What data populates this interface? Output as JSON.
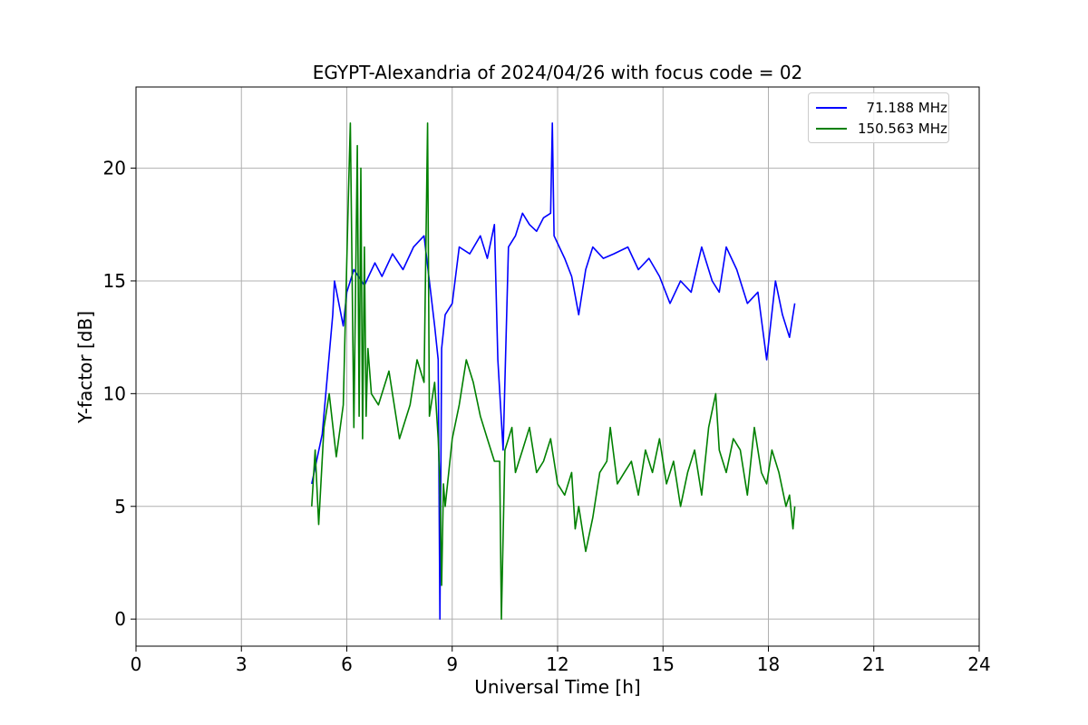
{
  "chart_data": {
    "type": "line",
    "title": "EGYPT-Alexandria of 2024/04/26 with focus code = 02",
    "xlabel": "Universal Time [h]",
    "ylabel": "Y-factor [dB]",
    "xlim": [
      0,
      24
    ],
    "ylim": [
      -1.2,
      23.6
    ],
    "xticks": [
      0,
      3,
      6,
      9,
      12,
      15,
      18,
      21,
      24
    ],
    "yticks": [
      0,
      5,
      10,
      15,
      20
    ],
    "grid": true,
    "legend": "top-right",
    "series": [
      {
        "name": "  71.188 MHz",
        "color": "#0000ff",
        "x": [
          5.0,
          5.3,
          5.6,
          5.65,
          5.9,
          6.0,
          6.2,
          6.5,
          6.8,
          7.0,
          7.3,
          7.6,
          7.9,
          8.2,
          8.5,
          8.6,
          8.65,
          8.7,
          8.8,
          9.0,
          9.2,
          9.5,
          9.8,
          10.0,
          10.2,
          10.3,
          10.45,
          10.6,
          10.8,
          11.0,
          11.2,
          11.4,
          11.6,
          11.8,
          11.85,
          11.9,
          12.2,
          12.4,
          12.6,
          12.8,
          13.0,
          13.3,
          13.6,
          14.0,
          14.3,
          14.6,
          14.9,
          15.2,
          15.5,
          15.8,
          16.1,
          16.4,
          16.6,
          16.8,
          17.1,
          17.4,
          17.7,
          17.95,
          18.2,
          18.4,
          18.6,
          18.7,
          18.75
        ],
        "y": [
          6.0,
          8.2,
          13.5,
          15.0,
          13.0,
          14.5,
          15.5,
          14.8,
          15.8,
          15.2,
          16.2,
          15.5,
          16.5,
          17.0,
          13.0,
          11.5,
          0.0,
          12.0,
          13.5,
          14.0,
          16.5,
          16.2,
          17.0,
          16.0,
          17.5,
          11.5,
          7.5,
          16.5,
          17.0,
          18.0,
          17.5,
          17.2,
          17.8,
          18.0,
          22.0,
          17.0,
          16.0,
          15.2,
          13.5,
          15.5,
          16.5,
          16.0,
          16.2,
          16.5,
          15.5,
          16.0,
          15.2,
          14.0,
          15.0,
          14.5,
          16.5,
          15.0,
          14.5,
          16.5,
          15.5,
          14.0,
          14.5,
          11.5,
          15.0,
          13.5,
          12.5,
          13.5,
          14.0
        ]
      },
      {
        "name": "150.563 MHz",
        "color": "#008000",
        "x": [
          5.0,
          5.1,
          5.2,
          5.35,
          5.5,
          5.7,
          5.9,
          6.05,
          6.1,
          6.2,
          6.3,
          6.35,
          6.4,
          6.45,
          6.5,
          6.55,
          6.6,
          6.7,
          6.9,
          7.2,
          7.5,
          7.8,
          8.0,
          8.2,
          8.3,
          8.35,
          8.5,
          8.6,
          8.65,
          8.7,
          8.75,
          8.8,
          9.0,
          9.2,
          9.4,
          9.6,
          9.8,
          10.0,
          10.2,
          10.35,
          10.4,
          10.5,
          10.7,
          10.8,
          11.0,
          11.2,
          11.4,
          11.6,
          11.8,
          12.0,
          12.2,
          12.4,
          12.5,
          12.6,
          12.8,
          13.0,
          13.2,
          13.4,
          13.5,
          13.7,
          13.9,
          14.1,
          14.3,
          14.5,
          14.7,
          14.9,
          15.1,
          15.3,
          15.5,
          15.7,
          15.9,
          16.1,
          16.3,
          16.5,
          16.6,
          16.8,
          17.0,
          17.2,
          17.4,
          17.6,
          17.8,
          17.95,
          18.1,
          18.3,
          18.5,
          18.6,
          18.7,
          18.75
        ],
        "y": [
          5.0,
          7.5,
          4.2,
          8.5,
          10.0,
          7.2,
          9.5,
          19.0,
          22.0,
          8.5,
          21.0,
          9.0,
          20.0,
          8.0,
          16.5,
          9.0,
          12.0,
          10.0,
          9.5,
          11.0,
          8.0,
          9.5,
          11.5,
          10.5,
          22.0,
          9.0,
          10.5,
          8.0,
          6.0,
          1.5,
          6.0,
          5.0,
          8.0,
          9.5,
          11.5,
          10.5,
          9.0,
          8.0,
          7.0,
          7.0,
          0.0,
          7.5,
          8.5,
          6.5,
          7.5,
          8.5,
          6.5,
          7.0,
          8.0,
          6.0,
          5.5,
          6.5,
          4.0,
          5.0,
          3.0,
          4.5,
          6.5,
          7.0,
          8.5,
          6.0,
          6.5,
          7.0,
          5.5,
          7.5,
          6.5,
          8.0,
          6.0,
          7.0,
          5.0,
          6.5,
          7.5,
          5.5,
          8.5,
          10.0,
          7.5,
          6.5,
          8.0,
          7.5,
          5.5,
          8.5,
          6.5,
          6.0,
          7.5,
          6.5,
          5.0,
          5.5,
          4.0,
          5.0
        ]
      }
    ]
  }
}
